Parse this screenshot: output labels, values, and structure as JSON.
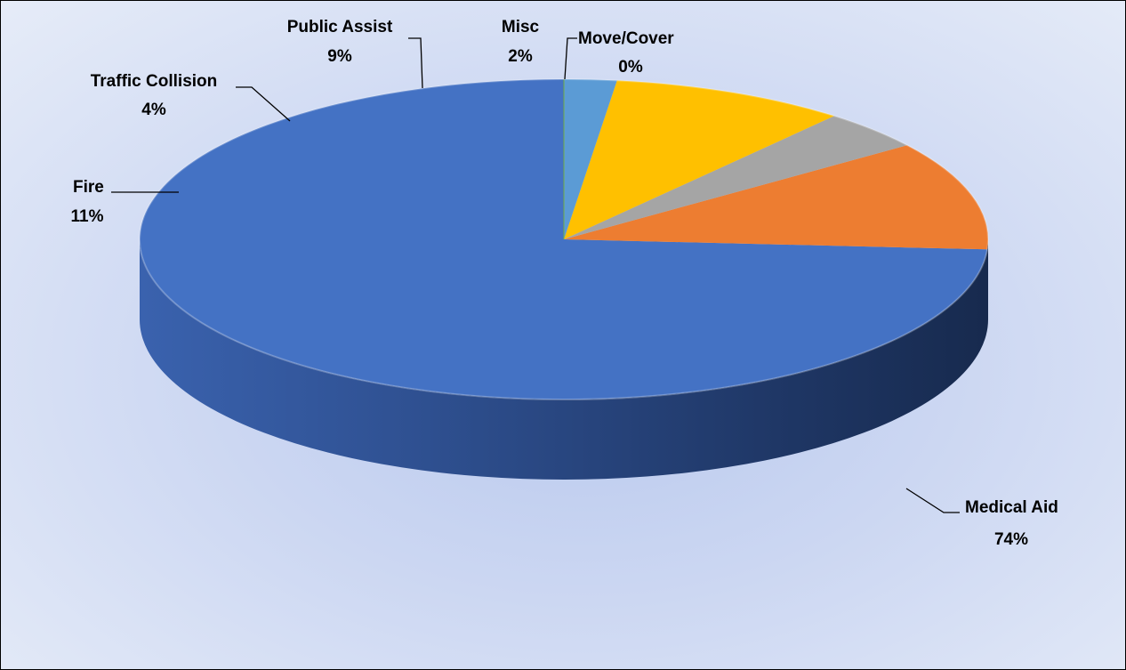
{
  "chart_data": {
    "type": "pie",
    "style": "3d",
    "title": "",
    "categories": [
      "Medical Aid",
      "Fire",
      "Traffic Collision",
      "Public Assist",
      "Misc",
      "Move/Cover"
    ],
    "values": [
      74,
      11,
      4,
      9,
      2,
      0
    ],
    "labels": [
      "74%",
      "11%",
      "4%",
      "9%",
      "2%",
      "0%"
    ],
    "colors": [
      "#4472c4",
      "#ed7d31",
      "#a5a5a5",
      "#ffc000",
      "#5b9bd5",
      "#70ad47"
    ],
    "legend": "none"
  }
}
